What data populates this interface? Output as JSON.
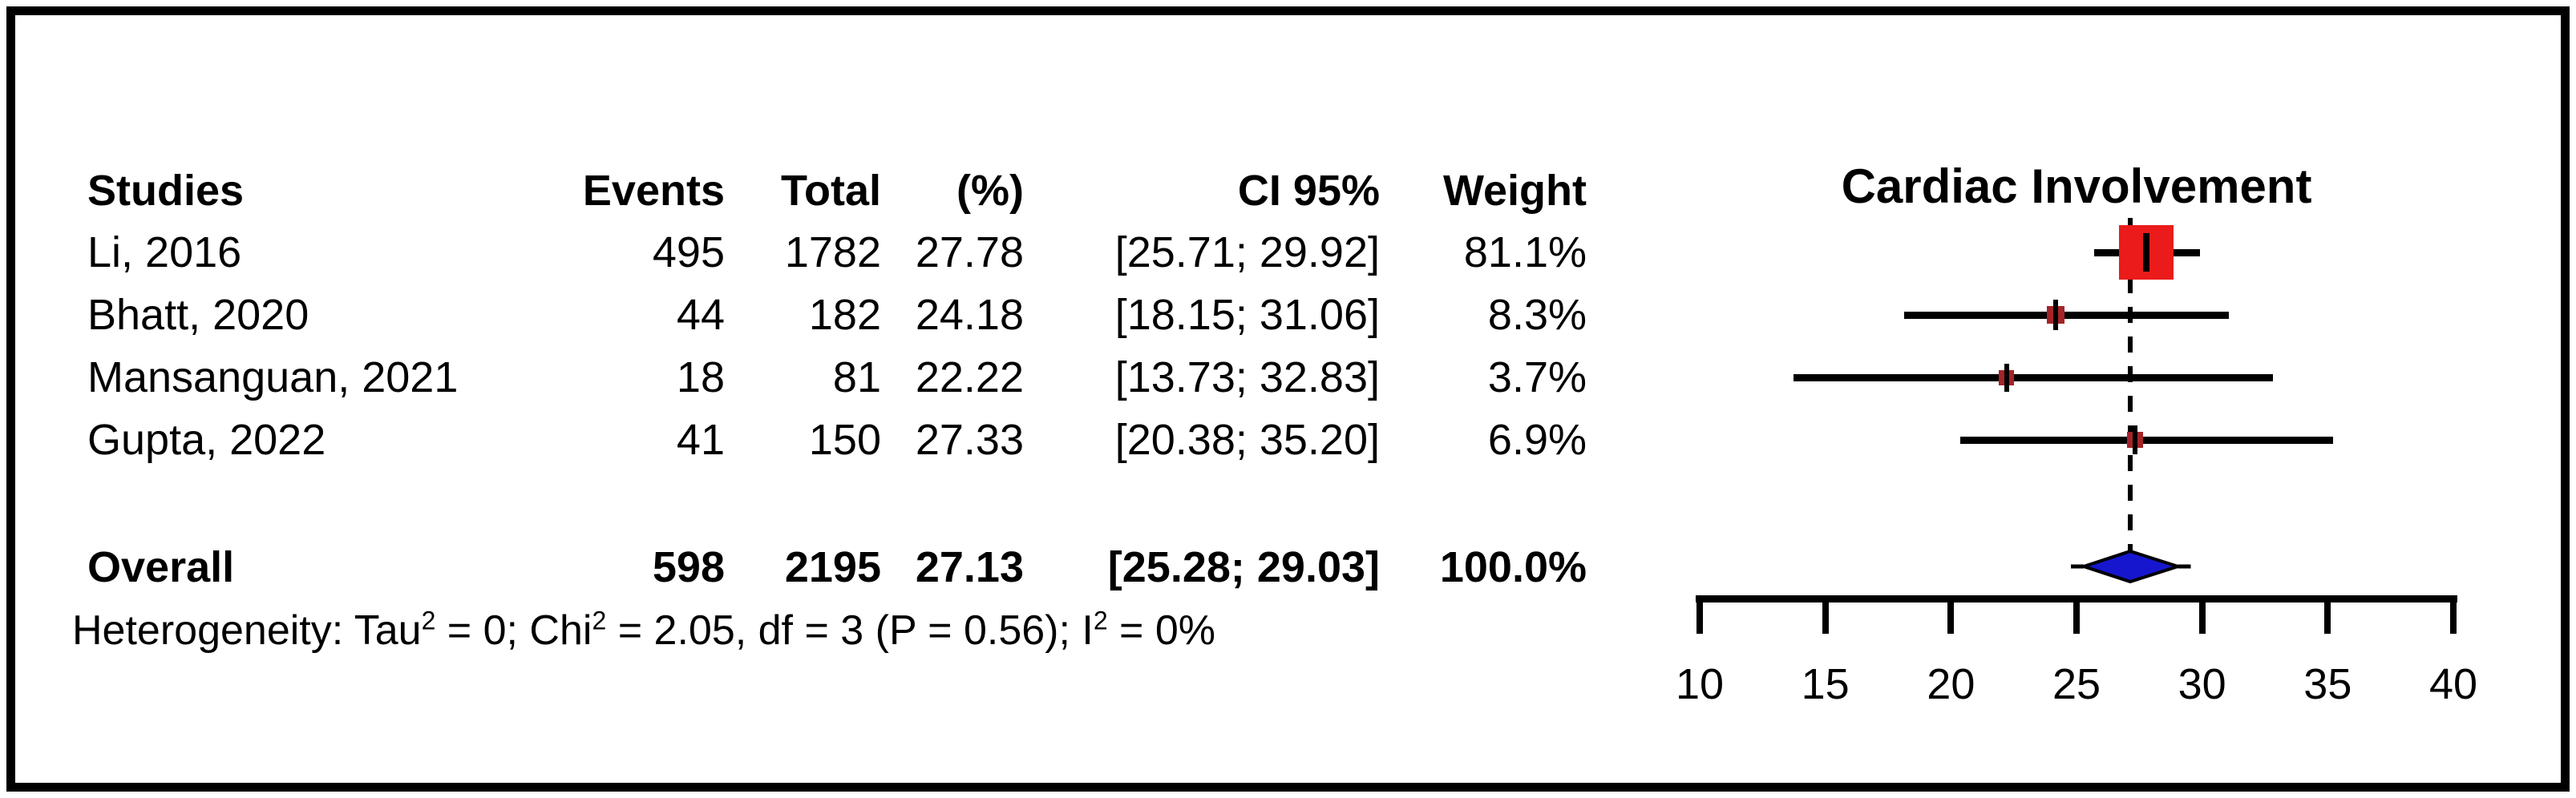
{
  "table": {
    "headers": {
      "studies": "Studies",
      "events": "Events",
      "total": "Total",
      "pct": "(%)",
      "ci": "CI 95%",
      "weight": "Weight"
    },
    "rows": [
      {
        "study": "Li, 2016",
        "events": "495",
        "total": "1782",
        "pct": "27.78",
        "ci": "[25.71; 29.92]",
        "weight": "81.1%"
      },
      {
        "study": "Bhatt, 2020",
        "events": "44",
        "total": "182",
        "pct": "24.18",
        "ci": "[18.15; 31.06]",
        "weight": "8.3%"
      },
      {
        "study": "Mansanguan, 2021",
        "events": "18",
        "total": "81",
        "pct": "22.22",
        "ci": "[13.73; 32.83]",
        "weight": "3.7%"
      },
      {
        "study": "Gupta, 2022",
        "events": "41",
        "total": "150",
        "pct": "27.33",
        "ci": "[20.38; 35.20]",
        "weight": "6.9%"
      }
    ],
    "overall": {
      "study": "Overall",
      "events": "598",
      "total": "2195",
      "pct": "27.13",
      "ci": "[25.28; 29.03]",
      "weight": "100.0%"
    },
    "heterogeneity": {
      "parts": [
        {
          "text": "Heterogeneity: Tau"
        },
        {
          "sup": "2"
        },
        {
          "text": " = 0; Chi"
        },
        {
          "sup": "2"
        },
        {
          "text": " = 2.05, df = 3 (P = 0.56); I"
        },
        {
          "sup": "2"
        },
        {
          "text": " = 0%"
        }
      ],
      "plain": "Heterogeneity: Tau2 = 0; Chi2 = 2.05, df = 3 (P = 0.56); I2 = 0%"
    }
  },
  "chart_data": {
    "type": "forest",
    "title": "Cardiac Involvement",
    "xlabel": "",
    "xlim": [
      10,
      40
    ],
    "x_ticks": [
      10,
      15,
      20,
      25,
      30,
      35,
      40
    ],
    "reference_line": 27.13,
    "studies": [
      {
        "label": "Li, 2016",
        "events": 495,
        "total": 1782,
        "estimate": 27.78,
        "ci_low": 25.71,
        "ci_high": 29.92,
        "weight_pct": 81.1
      },
      {
        "label": "Bhatt, 2020",
        "events": 44,
        "total": 182,
        "estimate": 24.18,
        "ci_low": 18.15,
        "ci_high": 31.06,
        "weight_pct": 8.3
      },
      {
        "label": "Mansanguan, 2021",
        "events": 18,
        "total": 81,
        "estimate": 22.22,
        "ci_low": 13.73,
        "ci_high": 32.83,
        "weight_pct": 3.7
      },
      {
        "label": "Gupta, 2022",
        "events": 41,
        "total": 150,
        "estimate": 27.33,
        "ci_low": 20.38,
        "ci_high": 35.2,
        "weight_pct": 6.9
      }
    ],
    "overall": {
      "label": "Overall",
      "events": 598,
      "total": 2195,
      "estimate": 27.13,
      "ci_low": 25.28,
      "ci_high": 29.03,
      "weight_pct": 100.0
    },
    "heterogeneity": {
      "tau2": 0,
      "chi2": 2.05,
      "df": 3,
      "p": 0.56,
      "i2_pct": 0
    },
    "legend_position": "none",
    "grid": false,
    "colors": {
      "large_square": "#eb1b1b",
      "small_square": "#a42428",
      "diamond_fill": "#1616ce",
      "line": "#000000",
      "text": "#000000",
      "background": "#ffffff"
    }
  }
}
